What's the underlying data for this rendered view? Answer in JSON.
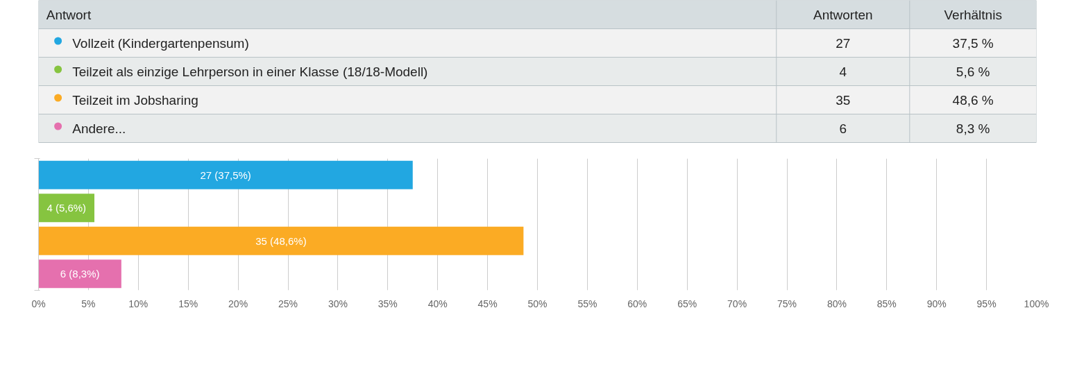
{
  "chart_data": [
    {
      "type": "other",
      "annotations": [
        "Antwort",
        "Antworten",
        "Verhältnis",
        "37,5 %",
        "5,6 %",
        "48,6 %",
        "8,3 %"
      ],
      "categories": [
        "Vollzeit (Kindergartenpensum)",
        "Teilzeit als einzige Lehrperson in einer Klasse (18/18-Modell)",
        "Teilzeit im Jobsharing",
        "Andere..."
      ],
      "values": [
        27,
        4,
        35,
        6
      ],
      "data_labels": true
    },
    {
      "type": "bar",
      "orientation": "horizontal",
      "categories": [
        null,
        null,
        null,
        null
      ],
      "values": [
        37.5,
        5.6,
        48.6,
        8.3
      ],
      "colors": [
        "#22a7e1",
        "#86c440",
        "#fbab24",
        "#e570ae"
      ],
      "value_labels": [
        "27 (37,5%)",
        "4 (5,6%)",
        "35 (48,6%)",
        "6 (8,3%)"
      ],
      "xlim": [
        0,
        100
      ],
      "xticks": [
        {
          "value": 0,
          "label": "0%"
        },
        {
          "value": 5,
          "label": "5%"
        },
        {
          "value": 10,
          "label": "10%"
        },
        {
          "value": 15,
          "label": "15%"
        },
        {
          "value": 20,
          "label": "20%"
        },
        {
          "value": 25,
          "label": "25%"
        },
        {
          "value": 30,
          "label": "30%"
        },
        {
          "value": 35,
          "label": "35%"
        },
        {
          "value": 40,
          "label": "40%"
        },
        {
          "value": 45,
          "label": "45%"
        },
        {
          "value": 50,
          "label": "50%"
        },
        {
          "value": 55,
          "label": "55%"
        },
        {
          "value": 60,
          "label": "60%"
        },
        {
          "value": 65,
          "label": "65%"
        },
        {
          "value": 70,
          "label": "70%"
        },
        {
          "value": 75,
          "label": "75%"
        },
        {
          "value": 80,
          "label": "80%"
        },
        {
          "value": 85,
          "label": "85%"
        },
        {
          "value": 90,
          "label": "90%"
        },
        {
          "value": 95,
          "label": "95%"
        },
        {
          "value": 100,
          "label": "100%"
        }
      ],
      "grid": "x"
    }
  ]
}
